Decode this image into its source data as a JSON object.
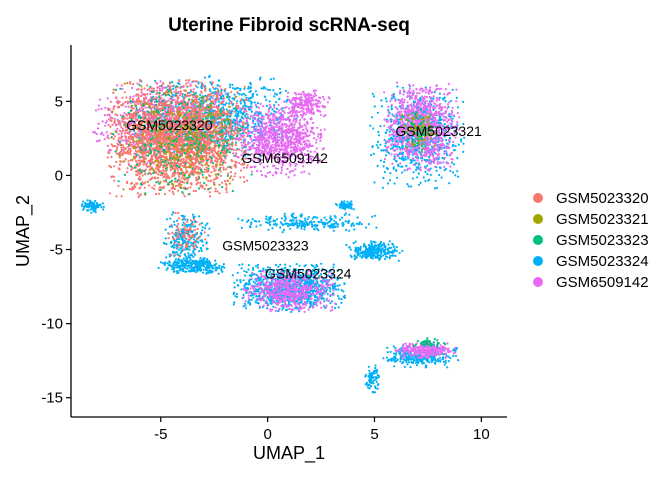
{
  "chart_data": {
    "type": "scatter",
    "title": "Uterine Fibroid scRNA-seq",
    "xlabel": "UMAP_1",
    "ylabel": "UMAP_2",
    "xlim": [
      -9.2,
      11.2
    ],
    "ylim": [
      -16.3,
      8.8
    ],
    "xticks": [
      -5,
      0,
      5,
      10
    ],
    "yticks": [
      5,
      0,
      -5,
      -10,
      -15
    ],
    "grid": false,
    "legend_position": "right",
    "series": [
      {
        "name": "GSM5023320",
        "color": "#F8766D"
      },
      {
        "name": "GSM5023321",
        "color": "#A3A500"
      },
      {
        "name": "GSM5023323",
        "color": "#00BF7D"
      },
      {
        "name": "GSM5023324",
        "color": "#00B0F6"
      },
      {
        "name": "GSM6509142",
        "color": "#E76BF3"
      }
    ],
    "clusters": [
      {
        "series": "GSM5023324",
        "center": [
          -2.5,
          4.0
        ],
        "spread": [
          3.6,
          2.5
        ],
        "count": 900
      },
      {
        "series": "GSM6509142",
        "center": [
          -5.0,
          3.5
        ],
        "spread": [
          3.0,
          2.6
        ],
        "count": 600
      },
      {
        "series": "GSM5023320",
        "center": [
          -4.2,
          2.5
        ],
        "spread": [
          3.0,
          3.6
        ],
        "count": 2600
      },
      {
        "series": "GSM5023323",
        "center": [
          -4.0,
          2.5
        ],
        "spread": [
          3.0,
          3.5
        ],
        "count": 350
      },
      {
        "series": "GSM5023321",
        "center": [
          -4.0,
          2.5
        ],
        "spread": [
          3.0,
          3.5
        ],
        "count": 200
      },
      {
        "series": "GSM6509142",
        "center": [
          0.6,
          2.4
        ],
        "spread": [
          1.9,
          2.3
        ],
        "count": 900
      },
      {
        "series": "GSM6509142",
        "center": [
          1.8,
          4.8
        ],
        "spread": [
          1.0,
          0.9
        ],
        "count": 200
      },
      {
        "series": "GSM5023324",
        "center": [
          -8.2,
          -2.1
        ],
        "spread": [
          0.5,
          0.4
        ],
        "count": 80
      },
      {
        "series": "GSM5023324",
        "center": [
          -3.8,
          -4.4
        ],
        "spread": [
          1.0,
          1.8
        ],
        "count": 260
      },
      {
        "series": "GSM5023320",
        "center": [
          -3.8,
          -4.0
        ],
        "spread": [
          0.8,
          1.4
        ],
        "count": 80
      },
      {
        "series": "GSM5023324",
        "center": [
          -3.5,
          -6.1
        ],
        "spread": [
          1.5,
          0.5
        ],
        "count": 250
      },
      {
        "series": "GSM5023324",
        "center": [
          1.0,
          -7.6
        ],
        "spread": [
          2.4,
          1.5
        ],
        "count": 900
      },
      {
        "series": "GSM6509142",
        "center": [
          1.0,
          -7.8
        ],
        "spread": [
          2.0,
          1.3
        ],
        "count": 500
      },
      {
        "series": "GSM5023324",
        "center": [
          5.0,
          -5.1
        ],
        "spread": [
          1.2,
          0.6
        ],
        "count": 250
      },
      {
        "series": "GSM5023324",
        "center": [
          1.8,
          -3.2
        ],
        "spread": [
          3.0,
          0.6
        ],
        "count": 220
      },
      {
        "series": "GSM5023324",
        "center": [
          3.6,
          -2.0
        ],
        "spread": [
          0.4,
          0.3
        ],
        "count": 60
      },
      {
        "series": "GSM5023324",
        "center": [
          7.0,
          2.5
        ],
        "spread": [
          2.0,
          3.2
        ],
        "count": 700
      },
      {
        "series": "GSM6509142",
        "center": [
          7.2,
          3.3
        ],
        "spread": [
          1.6,
          2.7
        ],
        "count": 900
      },
      {
        "series": "GSM5023321",
        "center": [
          7.1,
          3.0
        ],
        "spread": [
          0.8,
          1.3
        ],
        "count": 100
      },
      {
        "series": "GSM5023323",
        "center": [
          7.1,
          3.0
        ],
        "spread": [
          0.8,
          1.3
        ],
        "count": 60
      },
      {
        "series": "GSM5023324",
        "center": [
          7.2,
          -12.2
        ],
        "spread": [
          1.7,
          0.7
        ],
        "count": 300
      },
      {
        "series": "GSM6509142",
        "center": [
          7.4,
          -11.8
        ],
        "spread": [
          1.3,
          0.5
        ],
        "count": 250
      },
      {
        "series": "GSM5023324",
        "center": [
          4.9,
          -13.8
        ],
        "spread": [
          0.3,
          0.9
        ],
        "count": 80
      },
      {
        "series": "GSM5023323",
        "center": [
          7.5,
          -11.3
        ],
        "spread": [
          0.9,
          0.3
        ],
        "count": 40
      }
    ],
    "annotations": [
      {
        "text": "GSM5023320",
        "x": -4.6,
        "y": 3.3
      },
      {
        "text": "GSM6509142",
        "x": 0.8,
        "y": 1.1
      },
      {
        "text": "GSM5023321",
        "x": 8.0,
        "y": 2.9
      },
      {
        "text": "GSM5023323",
        "x": -0.1,
        "y": -4.8
      },
      {
        "text": "GSM5023324",
        "x": 1.9,
        "y": -6.7
      }
    ]
  }
}
